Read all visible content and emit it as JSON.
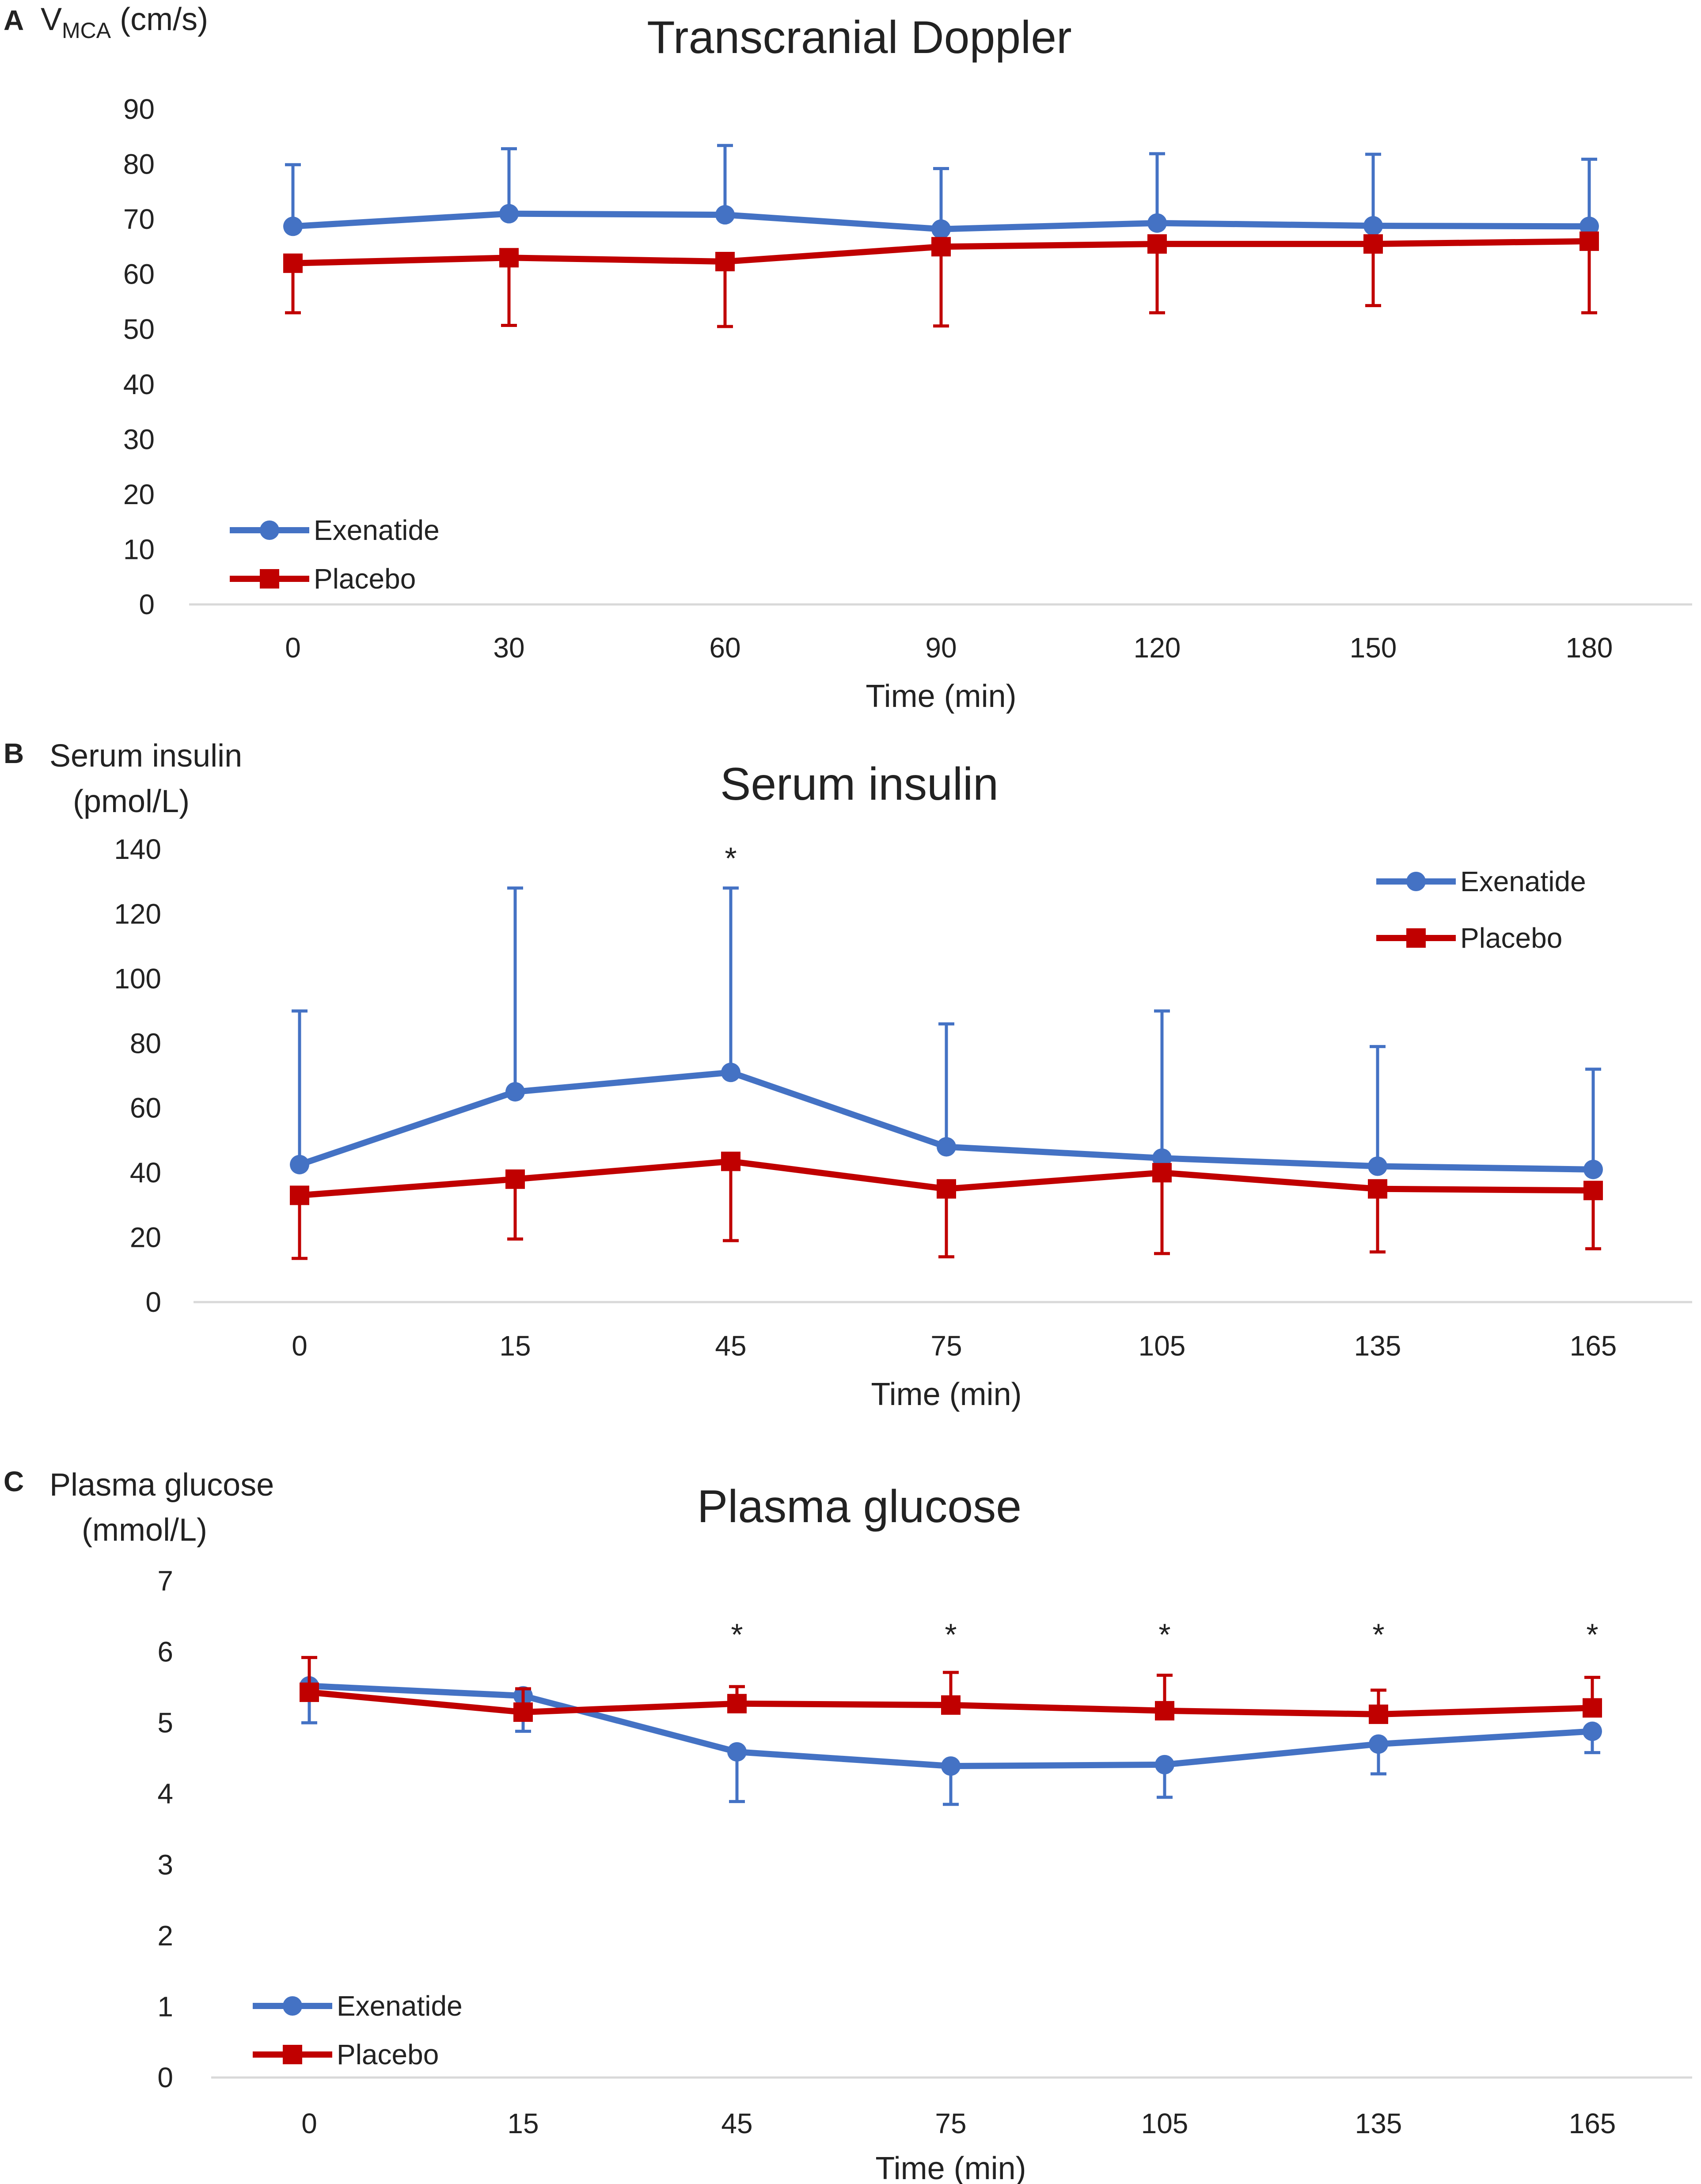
{
  "colors": {
    "exenatide": "#4472C4",
    "placebo": "#C00000",
    "axis": "#D9D9D9",
    "text": "#222222"
  },
  "chart_data": [
    {
      "panel": "A",
      "type": "line",
      "title": "Transcranial Doppler",
      "ylabel": "V",
      "ylabel_subscript": "MCA",
      "ylabel_unit": " (cm/s)",
      "xlabel": "Time (min)",
      "categories": [
        "0",
        "30",
        "60",
        "90",
        "120",
        "150",
        "180"
      ],
      "ylim": [
        0,
        90
      ],
      "yticks": [
        "0",
        "10",
        "20",
        "30",
        "40",
        "50",
        "60",
        "70",
        "80",
        "90"
      ],
      "legend_position": "bottom-left",
      "error_direction": {
        "Exenatide": "up",
        "Placebo": "down"
      },
      "series": [
        {
          "name": "Exenatide",
          "marker": "circle",
          "values": [
            68.7,
            71.0,
            70.8,
            68.2,
            69.3,
            68.8,
            68.7
          ],
          "error": [
            11.2,
            11.8,
            12.6,
            11.0,
            12.6,
            13.0,
            12.2
          ]
        },
        {
          "name": "Placebo",
          "marker": "square",
          "values": [
            62.0,
            63.0,
            62.3,
            65.0,
            65.5,
            65.5,
            66.0
          ],
          "error": [
            9.0,
            12.3,
            11.8,
            14.4,
            12.5,
            11.2,
            13.0
          ]
        }
      ],
      "annotations": []
    },
    {
      "panel": "B",
      "type": "line",
      "title": "Serum insulin",
      "ylabel": "Serum insulin",
      "ylabel_line2": "(pmol/L)",
      "xlabel": "Time (min)",
      "categories": [
        "0",
        "15",
        "45",
        "75",
        "105",
        "135",
        "165"
      ],
      "ylim": [
        0,
        140
      ],
      "yticks": [
        "0",
        "20",
        "40",
        "60",
        "80",
        "100",
        "120",
        "140"
      ],
      "legend_position": "top-right",
      "error_direction": {
        "Exenatide": "up",
        "Placebo": "down"
      },
      "series": [
        {
          "name": "Exenatide",
          "marker": "circle",
          "values": [
            42.5,
            65.0,
            71.0,
            48.0,
            44.5,
            42.0,
            41.0
          ],
          "error": [
            47.5,
            63.0,
            57.0,
            38.0,
            45.5,
            37.0,
            31.0
          ]
        },
        {
          "name": "Placebo",
          "marker": "square",
          "values": [
            33.0,
            38.0,
            43.5,
            35.0,
            40.0,
            35.0,
            34.5
          ],
          "error": [
            19.5,
            18.5,
            24.5,
            21.0,
            25.0,
            19.5,
            18.0
          ]
        }
      ],
      "annotations": [
        {
          "text": "*",
          "category": "45",
          "y": 138
        }
      ]
    },
    {
      "panel": "C",
      "type": "line",
      "title": "Plasma glucose",
      "ylabel": "Plasma glucose",
      "ylabel_line2": "(mmol/L)",
      "xlabel": "Time (min)",
      "categories": [
        "0",
        "15",
        "45",
        "75",
        "105",
        "135",
        "165"
      ],
      "ylim": [
        0,
        7
      ],
      "yticks": [
        "0",
        "1",
        "2",
        "3",
        "4",
        "5",
        "6",
        "7"
      ],
      "legend_position": "bottom-left",
      "error_direction": {
        "Exenatide": "down",
        "Placebo": "up"
      },
      "series": [
        {
          "name": "Exenatide",
          "marker": "circle",
          "values": [
            5.52,
            5.38,
            4.59,
            4.39,
            4.41,
            4.7,
            4.88
          ],
          "error": [
            0.52,
            0.5,
            0.7,
            0.54,
            0.46,
            0.42,
            0.3
          ]
        },
        {
          "name": "Placebo",
          "marker": "square",
          "values": [
            5.43,
            5.15,
            5.27,
            5.25,
            5.17,
            5.12,
            5.21
          ],
          "error": [
            0.49,
            0.33,
            0.24,
            0.46,
            0.5,
            0.34,
            0.43
          ]
        }
      ],
      "annotations": [
        {
          "text": "*",
          "category": "45",
          "y": 6.28
        },
        {
          "text": "*",
          "category": "75",
          "y": 6.28
        },
        {
          "text": "*",
          "category": "105",
          "y": 6.28
        },
        {
          "text": "*",
          "category": "135",
          "y": 6.28
        },
        {
          "text": "*",
          "category": "165",
          "y": 6.28
        }
      ]
    }
  ]
}
